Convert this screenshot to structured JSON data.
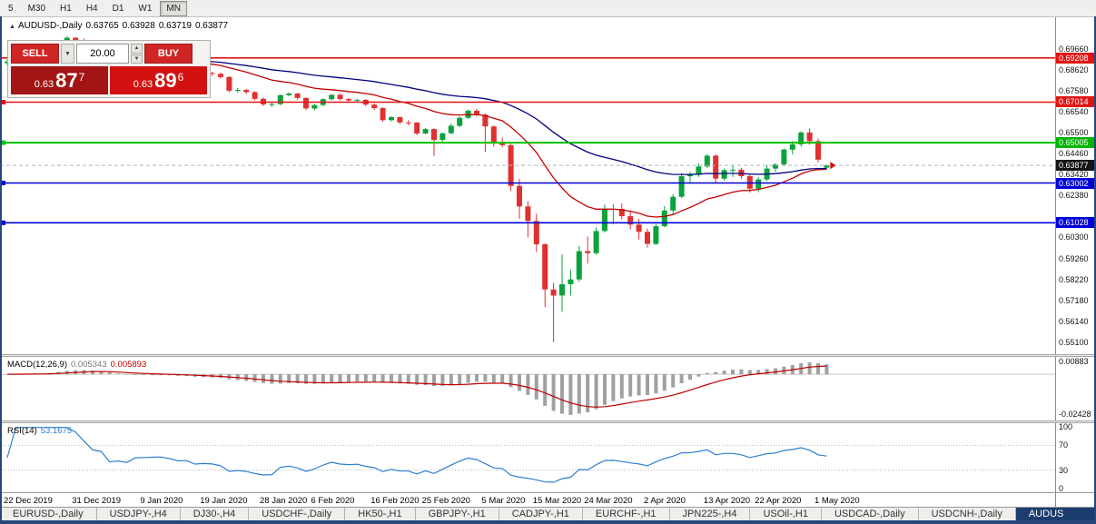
{
  "toolbar": {
    "timeframes": [
      "5",
      "M30",
      "H1",
      "H4",
      "D1",
      "W1",
      "MN"
    ],
    "active": "MN"
  },
  "icons": {
    "chart_marker": "▲",
    "dropdown": "▼",
    "up": "▲",
    "down": "▼"
  },
  "chart_header": {
    "symbol": "AUDUSD-,Daily",
    "open": "0.63765",
    "high": "0.63928",
    "low": "0.63719",
    "close": "0.63877"
  },
  "trade_panel": {
    "sell_label": "SELL",
    "buy_label": "BUY",
    "volume": "20.00",
    "sell_price": {
      "prefix": "0.63",
      "big": "87",
      "sup": "7"
    },
    "buy_price": {
      "prefix": "0.63",
      "big": "89",
      "sup": "6"
    }
  },
  "panels": {
    "macd": {
      "name": "MACD(12,26,9)",
      "v1": "0.005343",
      "v2": "0.005893"
    },
    "rsi": {
      "name": "RSI(14)",
      "v": "53.1675"
    }
  },
  "tabs": [
    "EURUSD-,Daily",
    "USDJPY-,H4",
    "DJ30-,H4",
    "USDCHF-,Daily",
    "HK50-,H1",
    "GBPJPY-,H1",
    "CADJPY-,H1",
    "EURCHF-,H1",
    "JPN225-,H4",
    "USOil-,H1",
    "USDCAD-,Daily",
    "USDCNH-,Daily"
  ],
  "active_tab": "AUDUS",
  "chart_data": {
    "type": "candlestick",
    "symbol": "AUDUSD",
    "timeframe": "Daily",
    "current_bar": {
      "open": 0.63765,
      "high": 0.63928,
      "low": 0.63719,
      "close": 0.63877
    },
    "bid": 0.63877,
    "ask": 0.63896,
    "y_axis": {
      "min": 0.546,
      "max": 0.701,
      "labels": [
        "0.69660",
        "0.68620",
        "0.67580",
        "0.66540",
        "0.65500",
        "0.64460",
        "0.63420",
        "0.62380",
        "0.61340",
        "0.60300",
        "0.59260",
        "0.58220",
        "0.57180",
        "0.56140",
        "0.55100"
      ]
    },
    "x_ticks": [
      {
        "i": 0,
        "label": "22 Dec 2019"
      },
      {
        "i": 8,
        "label": "31 Dec 2019"
      },
      {
        "i": 16,
        "label": "9 Jan 2020"
      },
      {
        "i": 23,
        "label": "19 Jan 2020"
      },
      {
        "i": 30,
        "label": "28 Jan 2020"
      },
      {
        "i": 36,
        "label": "6 Feb 2020"
      },
      {
        "i": 43,
        "label": "16 Feb 2020"
      },
      {
        "i": 49,
        "label": "25 Feb 2020"
      },
      {
        "i": 56,
        "label": "5 Mar 2020"
      },
      {
        "i": 62,
        "label": "15 Mar 2020"
      },
      {
        "i": 68,
        "label": "24 Mar 2020"
      },
      {
        "i": 75,
        "label": "2 Apr 2020"
      },
      {
        "i": 82,
        "label": "13 Apr 2020"
      },
      {
        "i": 88,
        "label": "22 Apr 2020"
      },
      {
        "i": 95,
        "label": "1 May 2020"
      }
    ],
    "horizontal_lines": [
      {
        "price": 0.69208,
        "color": "#e21414",
        "width": 1.6
      },
      {
        "price": 0.67014,
        "color": "#e21414",
        "width": 1.6,
        "marker": true
      },
      {
        "price": 0.65005,
        "color": "#00c000",
        "width": 2,
        "marker": true
      },
      {
        "price": 0.63877,
        "color": "#b4b4b4",
        "width": 1,
        "dash": true
      },
      {
        "price": 0.63002,
        "color": "#0000d8",
        "width": 1.6,
        "marker": true
      },
      {
        "price": 0.61028,
        "color": "#0000d8",
        "width": 1.6,
        "marker": true
      }
    ],
    "price_badges": [
      {
        "text": "0.69208",
        "price": 0.69208,
        "color": "#e21414"
      },
      {
        "text": "0.67014",
        "price": 0.67014,
        "color": "#e21414"
      },
      {
        "text": "0.65005",
        "price": 0.65005,
        "color": "#00b400"
      },
      {
        "text": "0.63877",
        "price": 0.63877,
        "color": "#141414"
      },
      {
        "text": "0.63002",
        "price": 0.63002,
        "color": "#0000d8"
      },
      {
        "text": "0.61028",
        "price": 0.61028,
        "color": "#0000d8"
      }
    ],
    "colors": {
      "bull": "#0ba23c",
      "bear": "#e03030"
    },
    "moving_averages": [
      {
        "type": "ema",
        "period": 20,
        "color": "#c00000"
      },
      {
        "type": "ema",
        "period": 50,
        "color": "#000080"
      }
    ],
    "indicators": [
      {
        "name": "MACD",
        "params": [
          12,
          26,
          9
        ],
        "current_macd": 0.005343,
        "current_signal": 0.005893,
        "axis_labels": [
          "0.00883",
          "-0.02428"
        ],
        "colors": {
          "histogram": "#a0a0a0",
          "signal": "#c00000"
        }
      },
      {
        "name": "RSI",
        "params": [
          14
        ],
        "current_value": 53.1675,
        "axis_labels": [
          "100",
          "70",
          "30",
          "0"
        ],
        "levels": [
          70,
          30
        ],
        "color": "#2a7fd4"
      }
    ],
    "ohlc": [
      [
        0.6895,
        0.6912,
        0.6885,
        0.6902
      ],
      [
        0.6902,
        0.6916,
        0.6896,
        0.6907
      ],
      [
        0.6907,
        0.6925,
        0.69,
        0.6917
      ],
      [
        0.6917,
        0.6928,
        0.691,
        0.692
      ],
      [
        0.692,
        0.6938,
        0.6914,
        0.693
      ],
      [
        0.693,
        0.6955,
        0.6925,
        0.6947
      ],
      [
        0.6947,
        0.6995,
        0.694,
        0.699
      ],
      [
        0.699,
        0.7029,
        0.6983,
        0.7021
      ],
      [
        0.7021,
        0.7025,
        0.7,
        0.701
      ],
      [
        0.701,
        0.7017,
        0.6978,
        0.6985
      ],
      [
        0.6985,
        0.699,
        0.694,
        0.695
      ],
      [
        0.695,
        0.6958,
        0.693,
        0.6942
      ],
      [
        0.6942,
        0.6945,
        0.685,
        0.6865
      ],
      [
        0.6865,
        0.688,
        0.6855,
        0.6872
      ],
      [
        0.6872,
        0.6878,
        0.6845,
        0.6855
      ],
      [
        0.6855,
        0.6905,
        0.685,
        0.6898
      ],
      [
        0.6898,
        0.691,
        0.689,
        0.69
      ],
      [
        0.69,
        0.6912,
        0.6892,
        0.6903
      ],
      [
        0.6903,
        0.692,
        0.6897,
        0.6905
      ],
      [
        0.6905,
        0.691,
        0.6885,
        0.6893
      ],
      [
        0.6893,
        0.6898,
        0.6862,
        0.6872
      ],
      [
        0.6872,
        0.6884,
        0.6866,
        0.6874
      ],
      [
        0.6874,
        0.6878,
        0.6835,
        0.6843
      ],
      [
        0.6843,
        0.6855,
        0.6838,
        0.6846
      ],
      [
        0.6846,
        0.6852,
        0.683,
        0.6842
      ],
      [
        0.6842,
        0.6848,
        0.6818,
        0.6826
      ],
      [
        0.6826,
        0.683,
        0.675,
        0.6758
      ],
      [
        0.6758,
        0.6772,
        0.6748,
        0.6762
      ],
      [
        0.6762,
        0.6768,
        0.674,
        0.6751
      ],
      [
        0.6751,
        0.6756,
        0.671,
        0.6718
      ],
      [
        0.6718,
        0.6724,
        0.6682,
        0.669
      ],
      [
        0.669,
        0.67,
        0.6678,
        0.6692
      ],
      [
        0.6692,
        0.674,
        0.6686,
        0.6736
      ],
      [
        0.6736,
        0.675,
        0.673,
        0.6744
      ],
      [
        0.6744,
        0.6748,
        0.6712,
        0.6722
      ],
      [
        0.6722,
        0.6726,
        0.6662,
        0.667
      ],
      [
        0.667,
        0.6692,
        0.666,
        0.6687
      ],
      [
        0.6687,
        0.672,
        0.668,
        0.6716
      ],
      [
        0.6716,
        0.6742,
        0.671,
        0.6738
      ],
      [
        0.6738,
        0.6744,
        0.671,
        0.6717
      ],
      [
        0.6717,
        0.6722,
        0.67,
        0.671
      ],
      [
        0.671,
        0.6718,
        0.6704,
        0.6713
      ],
      [
        0.6713,
        0.6717,
        0.668,
        0.6689
      ],
      [
        0.6689,
        0.6694,
        0.6662,
        0.6672
      ],
      [
        0.6672,
        0.6676,
        0.6604,
        0.6612
      ],
      [
        0.6612,
        0.6632,
        0.6605,
        0.6627
      ],
      [
        0.6627,
        0.663,
        0.6592,
        0.6601
      ],
      [
        0.6601,
        0.6612,
        0.6585,
        0.66
      ],
      [
        0.66,
        0.6603,
        0.6538,
        0.6546
      ],
      [
        0.6546,
        0.6574,
        0.6542,
        0.6568
      ],
      [
        0.6568,
        0.6572,
        0.6434,
        0.6514
      ],
      [
        0.6514,
        0.655,
        0.6496,
        0.6547
      ],
      [
        0.6547,
        0.6596,
        0.6542,
        0.6584
      ],
      [
        0.6584,
        0.663,
        0.6578,
        0.6624
      ],
      [
        0.6624,
        0.6664,
        0.6618,
        0.6659
      ],
      [
        0.6659,
        0.6668,
        0.663,
        0.6639
      ],
      [
        0.6639,
        0.6645,
        0.6455,
        0.6581
      ],
      [
        0.6581,
        0.6586,
        0.648,
        0.6502
      ],
      [
        0.6502,
        0.6525,
        0.6478,
        0.6488
      ],
      [
        0.6488,
        0.6495,
        0.626,
        0.6286
      ],
      [
        0.6286,
        0.6322,
        0.6123,
        0.6184
      ],
      [
        0.6184,
        0.621,
        0.603,
        0.6112
      ],
      [
        0.6112,
        0.6148,
        0.5958,
        0.5996
      ],
      [
        0.5996,
        0.6001,
        0.5685,
        0.5772
      ],
      [
        0.5772,
        0.5805,
        0.551,
        0.5742
      ],
      [
        0.5742,
        0.5946,
        0.5662,
        0.5798
      ],
      [
        0.5798,
        0.587,
        0.5742,
        0.5822
      ],
      [
        0.5822,
        0.5988,
        0.581,
        0.5962
      ],
      [
        0.5962,
        0.6035,
        0.59,
        0.5952
      ],
      [
        0.5952,
        0.608,
        0.5945,
        0.6062
      ],
      [
        0.6062,
        0.6193,
        0.6055,
        0.6168
      ],
      [
        0.6168,
        0.6195,
        0.6095,
        0.6172
      ],
      [
        0.6172,
        0.62,
        0.612,
        0.6136
      ],
      [
        0.6136,
        0.616,
        0.607,
        0.6094
      ],
      [
        0.6094,
        0.6122,
        0.602,
        0.6058
      ],
      [
        0.6058,
        0.6075,
        0.598,
        0.5998
      ],
      [
        0.5998,
        0.6096,
        0.5992,
        0.6086
      ],
      [
        0.6086,
        0.6185,
        0.608,
        0.6164
      ],
      [
        0.6164,
        0.6245,
        0.614,
        0.6232
      ],
      [
        0.6232,
        0.635,
        0.6226,
        0.6334
      ],
      [
        0.6334,
        0.6355,
        0.63,
        0.6342
      ],
      [
        0.6342,
        0.6398,
        0.633,
        0.6382
      ],
      [
        0.6382,
        0.6445,
        0.6375,
        0.6436
      ],
      [
        0.6436,
        0.6442,
        0.6302,
        0.6322
      ],
      [
        0.6322,
        0.6372,
        0.6312,
        0.6364
      ],
      [
        0.6364,
        0.639,
        0.633,
        0.6366
      ],
      [
        0.6366,
        0.6376,
        0.632,
        0.6334
      ],
      [
        0.6334,
        0.634,
        0.6253,
        0.6272
      ],
      [
        0.6272,
        0.633,
        0.6255,
        0.6318
      ],
      [
        0.6318,
        0.6388,
        0.631,
        0.6372
      ],
      [
        0.6372,
        0.64,
        0.6355,
        0.6392
      ],
      [
        0.6392,
        0.6472,
        0.6385,
        0.6466
      ],
      [
        0.6466,
        0.6508,
        0.6442,
        0.6492
      ],
      [
        0.6492,
        0.6557,
        0.648,
        0.6551
      ],
      [
        0.6551,
        0.657,
        0.649,
        0.6508
      ],
      [
        0.6508,
        0.652,
        0.6402,
        0.6416
      ],
      [
        0.63765,
        0.63928,
        0.63719,
        0.63877
      ]
    ]
  }
}
